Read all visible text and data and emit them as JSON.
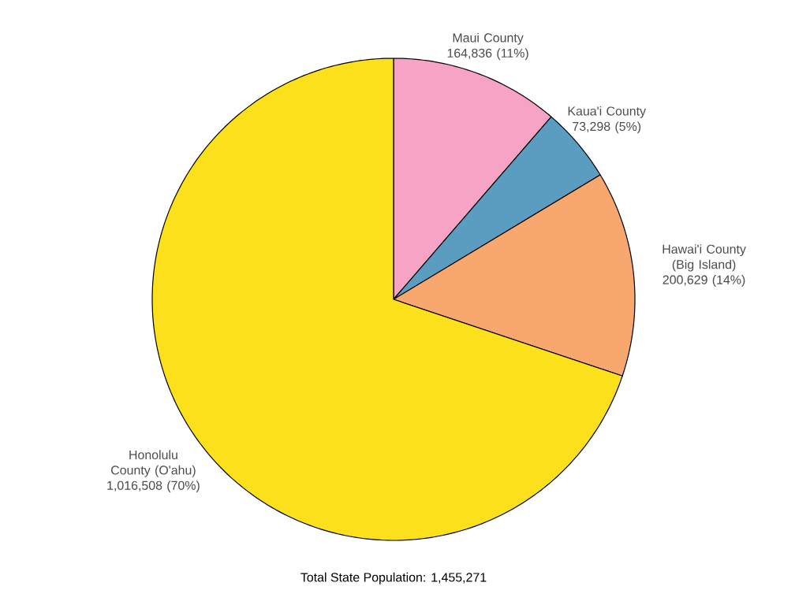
{
  "chart_data": {
    "type": "pie",
    "categories": [
      "Maui County",
      "Kaua'i County",
      "Hawai'i County (Big Island)",
      "Honolulu County (O'ahu)"
    ],
    "values": [
      164836,
      73298,
      200629,
      1016508
    ],
    "value_labels": [
      "164,836  (11%)",
      "73,298  (5%)",
      "200,629  (14%)",
      "1,016,508  (70%)"
    ],
    "colors": [
      "#f7a3c6",
      "#5b9dc1",
      "#f8a86e",
      "#fde01c"
    ],
    "annotations": [
      "Total State Population: 1,455,271"
    ]
  }
}
